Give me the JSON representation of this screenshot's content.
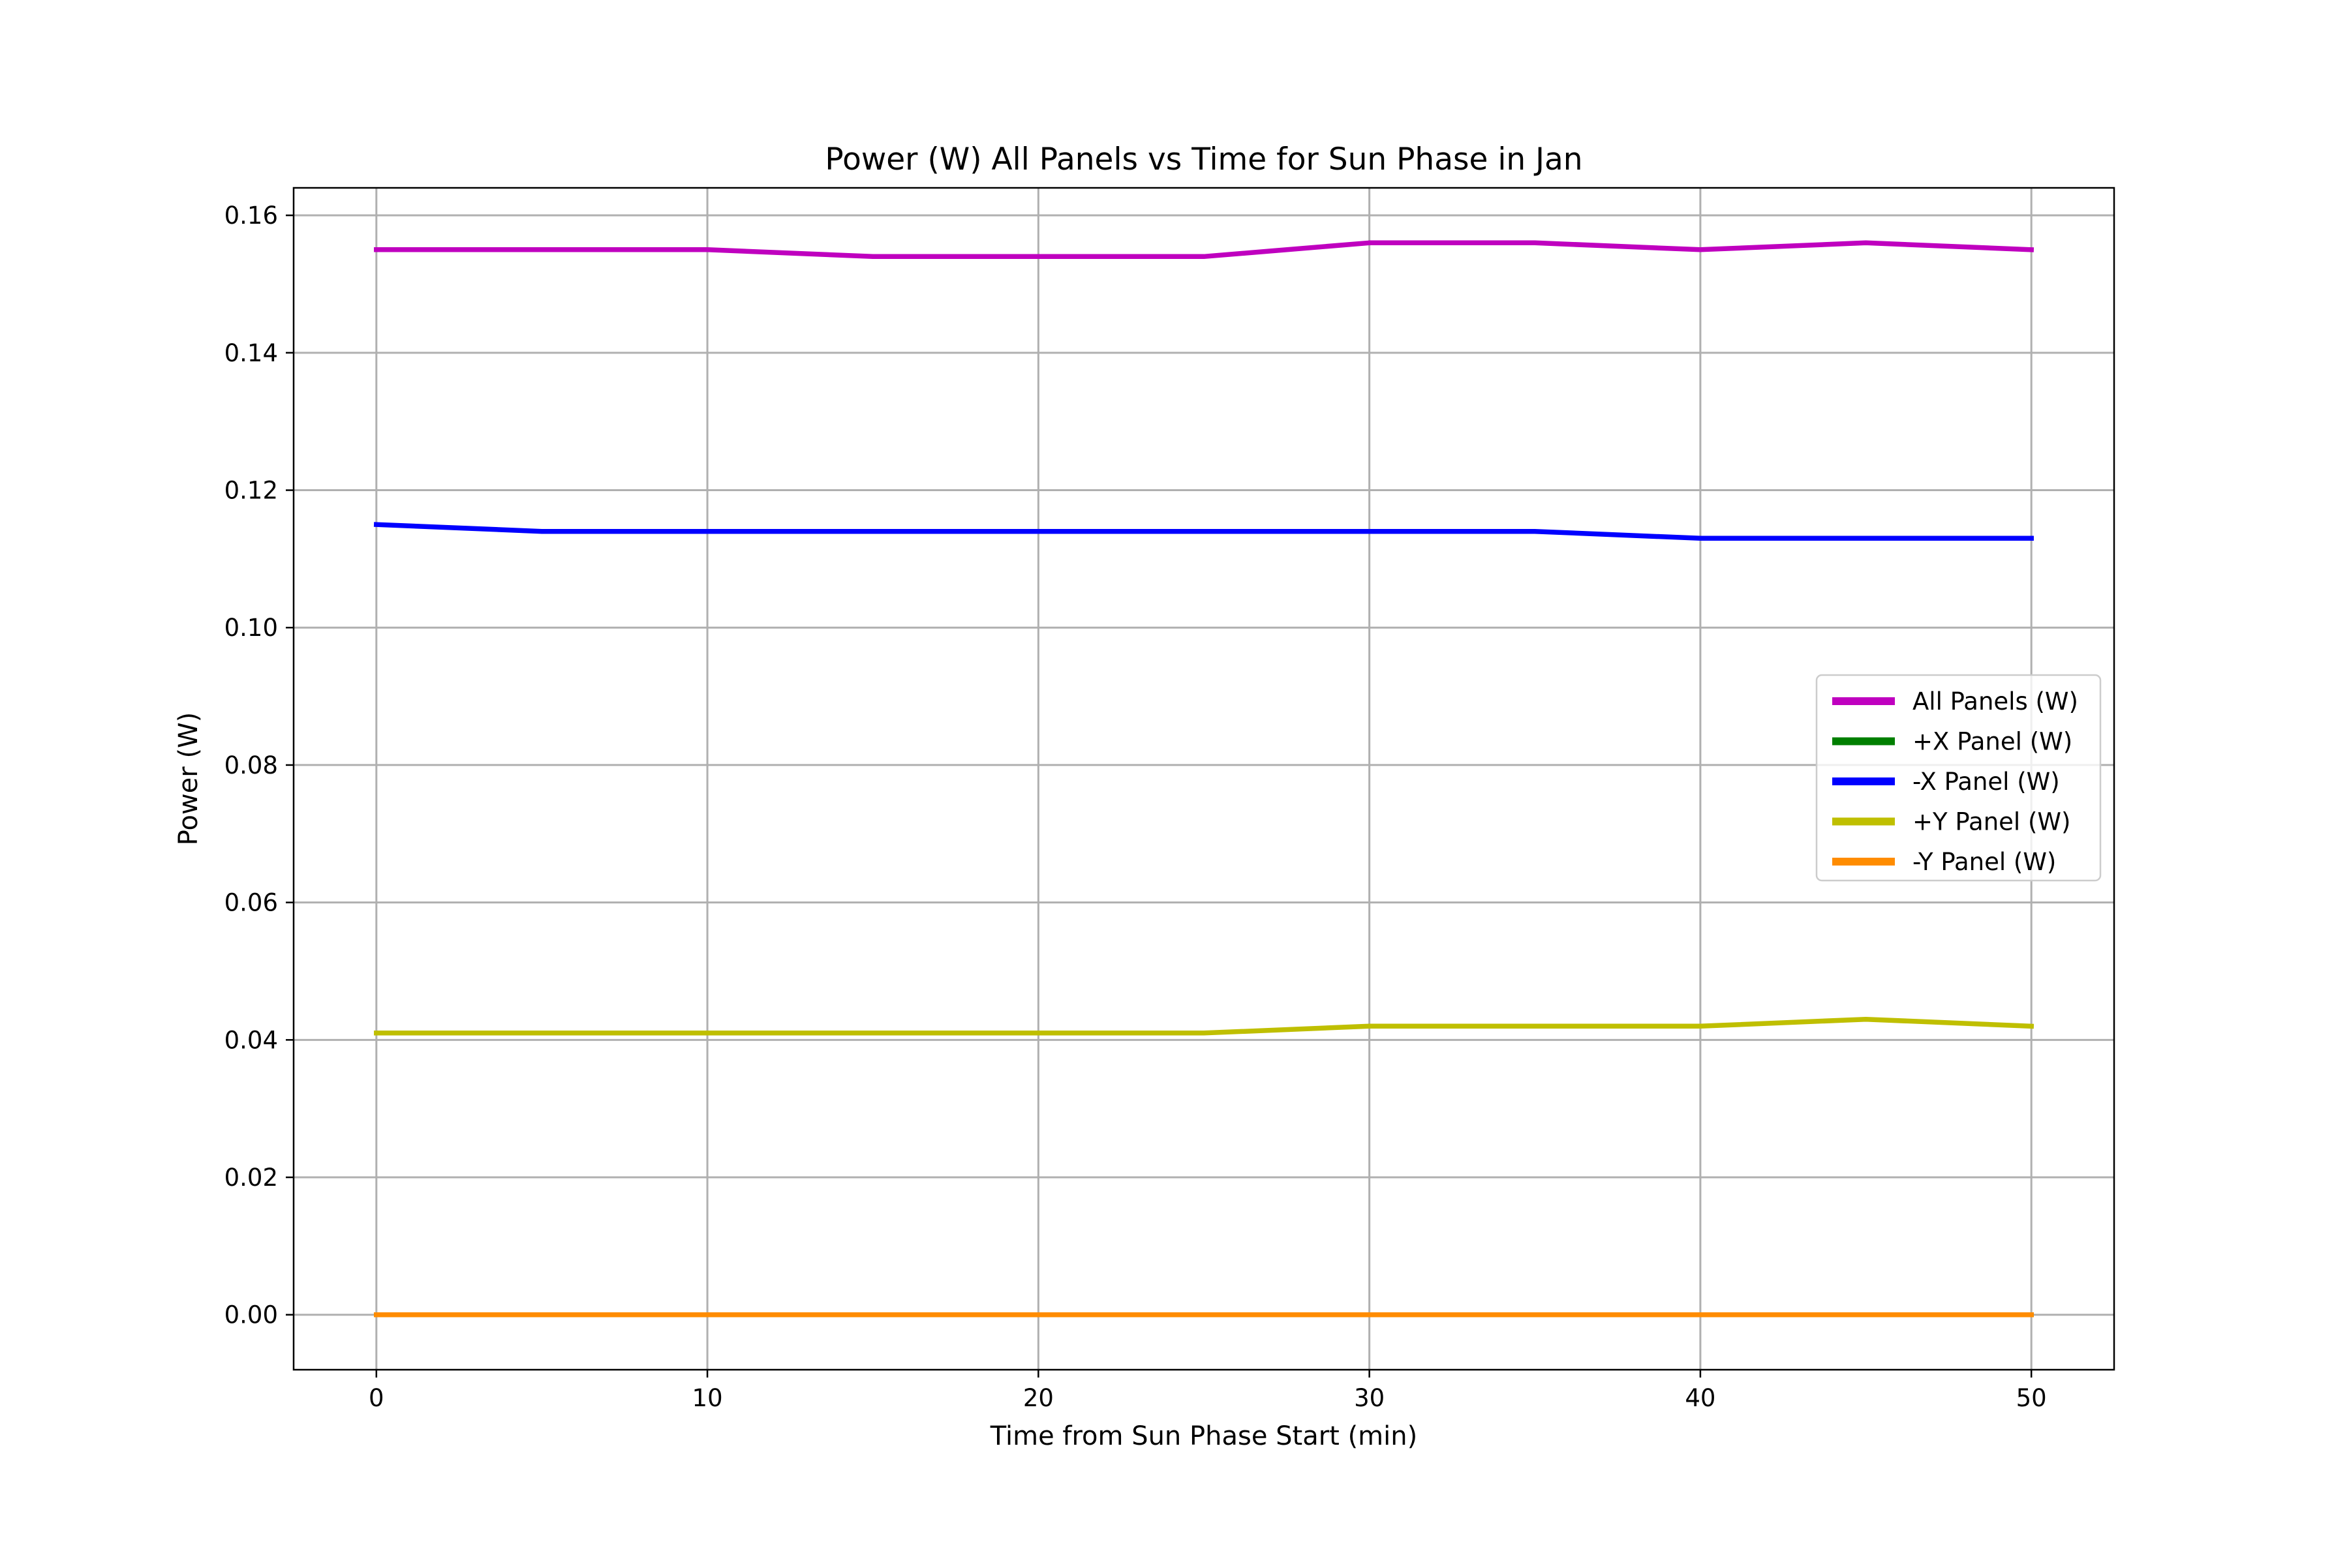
{
  "chart_data": {
    "type": "line",
    "title": "Power (W) All Panels vs Time for Sun Phase in Jan",
    "xlabel": "Time from Sun Phase Start (min)",
    "ylabel": "Power (W)",
    "xlim": [
      -2.5,
      52.5
    ],
    "ylim": [
      -0.008,
      0.164
    ],
    "x_ticks": [
      0,
      10,
      20,
      30,
      40,
      50
    ],
    "x_tick_labels": [
      "0",
      "10",
      "20",
      "30",
      "40",
      "50"
    ],
    "y_ticks": [
      0.0,
      0.02,
      0.04,
      0.06,
      0.08,
      0.1,
      0.12,
      0.14,
      0.16
    ],
    "y_tick_labels": [
      "0.00",
      "0.02",
      "0.04",
      "0.06",
      "0.08",
      "0.10",
      "0.12",
      "0.14",
      "0.16"
    ],
    "grid": true,
    "legend_position": "center-right",
    "x": [
      0,
      5,
      10,
      15,
      20,
      25,
      30,
      35,
      40,
      45,
      50
    ],
    "series": [
      {
        "name": "All Panels (W)",
        "color": "#bf00bf",
        "values": [
          0.155,
          0.155,
          0.155,
          0.154,
          0.154,
          0.154,
          0.156,
          0.156,
          0.155,
          0.156,
          0.155
        ]
      },
      {
        "name": "+X Panel (W)",
        "color": "#007f00",
        "values": [
          0,
          0,
          0,
          0,
          0,
          0,
          0,
          0,
          0,
          0,
          0
        ]
      },
      {
        "name": "-X Panel (W)",
        "color": "#0000ff",
        "values": [
          0.115,
          0.114,
          0.114,
          0.114,
          0.114,
          0.114,
          0.114,
          0.114,
          0.113,
          0.113,
          0.113
        ]
      },
      {
        "name": "+Y Panel (W)",
        "color": "#bfbf00",
        "values": [
          0.041,
          0.041,
          0.041,
          0.041,
          0.041,
          0.041,
          0.042,
          0.042,
          0.042,
          0.043,
          0.042
        ]
      },
      {
        "name": "-Y Panel (W)",
        "color": "#ff8c00",
        "values": [
          0,
          0,
          0,
          0,
          0,
          0,
          0,
          0,
          0,
          0,
          0
        ]
      }
    ]
  }
}
